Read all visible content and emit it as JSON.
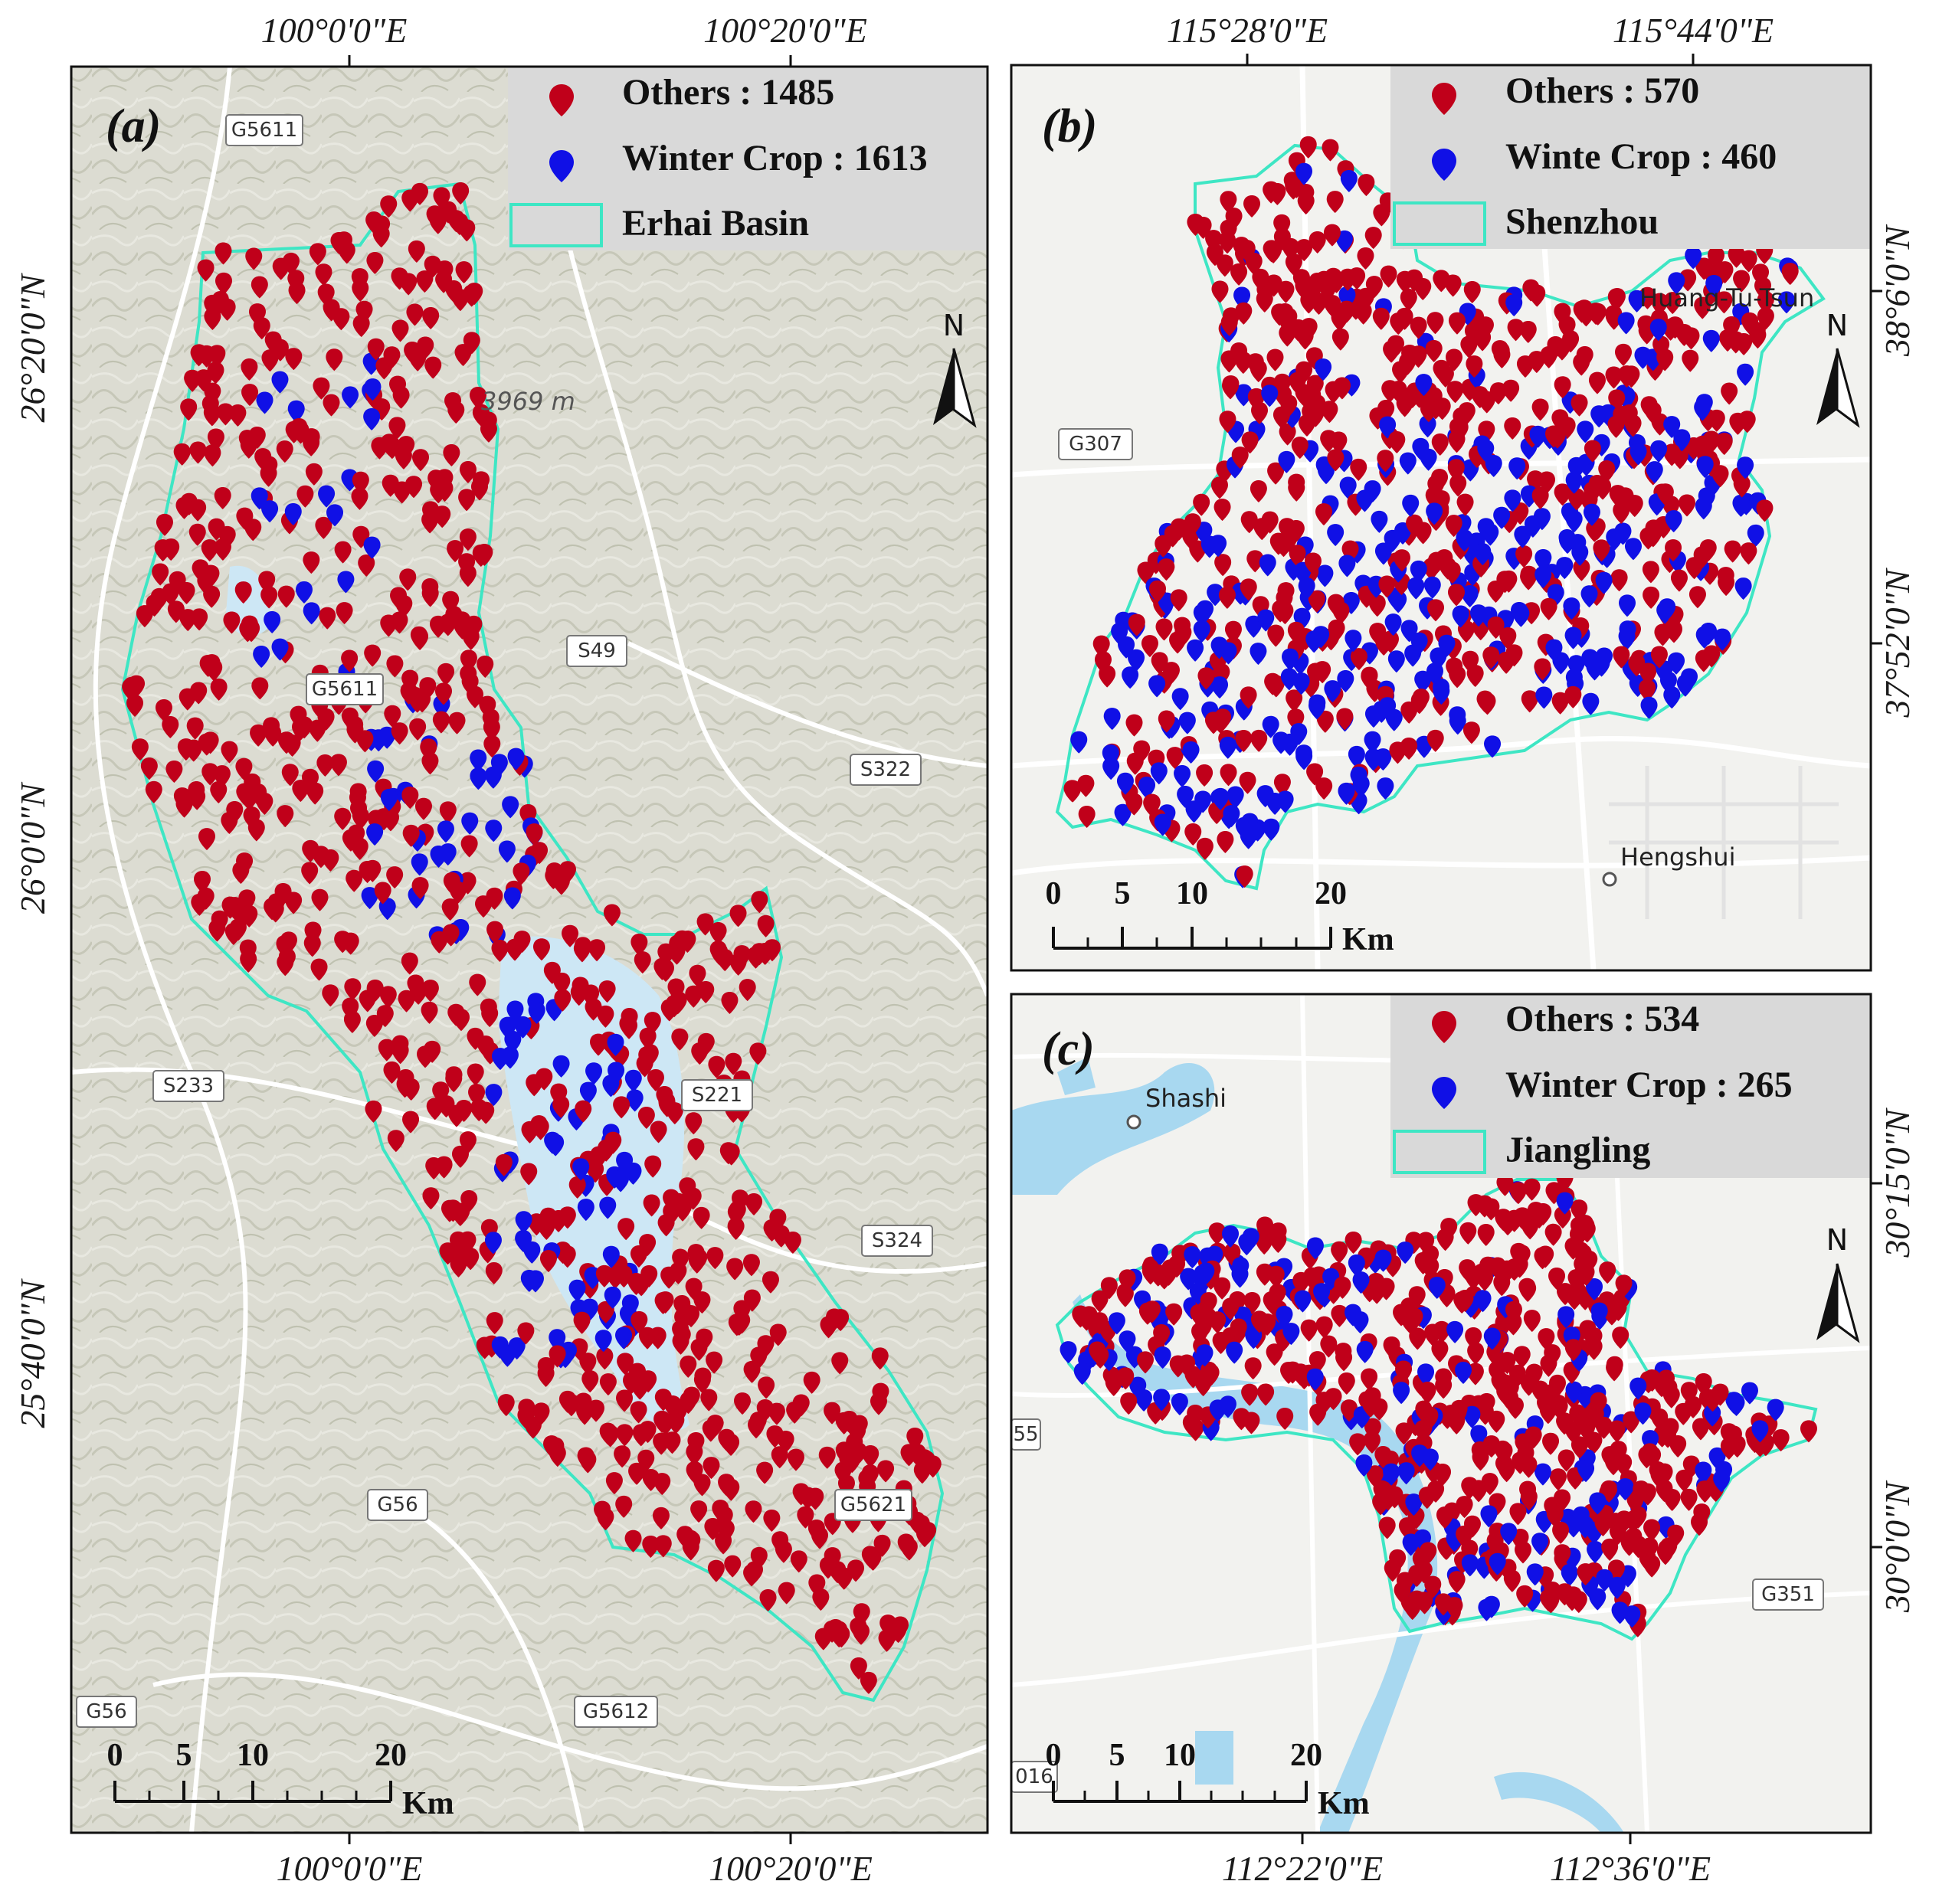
{
  "colors": {
    "others": "#c0001a",
    "winter_crop": "#1010e6",
    "boundary": "#3ee6c4",
    "legend_bg": "#d9d9d9",
    "water": "#cde7f5"
  },
  "panels": {
    "a": {
      "label": "(a)",
      "legend": {
        "others": "Others : 1485",
        "winter": "Winter Crop : 1613",
        "region": "Erhai Basin"
      },
      "top_lon": [
        "100°0'0\"E",
        "100°20'0\"E"
      ],
      "bottom_lon": [
        "100°0'0\"E",
        "100°20'0\"E"
      ],
      "left_lat": [
        "26°20'0\"N",
        "26°0'0\"N",
        "25°40'0\"N"
      ],
      "roads": [
        "G5611",
        "G5611",
        "S49",
        "S322",
        "S233",
        "S221",
        "S324",
        "G56",
        "G5621",
        "G56",
        "G5612"
      ],
      "elevation": "3969 m",
      "scale": {
        "ticks": [
          "0",
          "5",
          "10",
          "20"
        ],
        "unit": "Km"
      },
      "north": "N"
    },
    "b": {
      "label": "(b)",
      "legend": {
        "others": "Others : 570",
        "winter": "Winte Crop : 460",
        "region": "Shenzhou"
      },
      "top_lon": [
        "115°28'0\"E",
        "115°44'0\"E"
      ],
      "right_lat": [
        "38°6'0\"N",
        "37°52'0\"N"
      ],
      "roads": [
        "G307"
      ],
      "places": [
        "Huang-Tu-Tsun",
        "Hengshui"
      ],
      "scale": {
        "ticks": [
          "0",
          "5",
          "10",
          "20"
        ],
        "unit": "Km"
      },
      "north": "N"
    },
    "c": {
      "label": "(c)",
      "legend": {
        "others": "Others : 534",
        "winter": "Winter Crop : 265",
        "region": "Jiangling"
      },
      "bottom_lon": [
        "112°22'0\"E",
        "112°36'0\"E"
      ],
      "right_lat": [
        "30°15'0\"N",
        "30°0'0\"N"
      ],
      "roads": [
        "G351",
        "55",
        "016"
      ],
      "places": [
        "Shashi"
      ],
      "scale": {
        "ticks": [
          "0",
          "5",
          "10",
          "20"
        ],
        "unit": "Km"
      },
      "north": "N"
    }
  }
}
